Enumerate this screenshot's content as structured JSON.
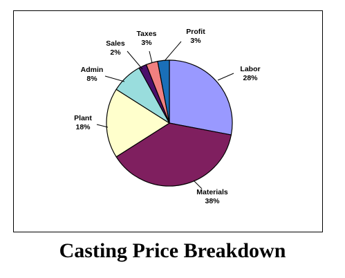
{
  "chart_data": {
    "type": "pie",
    "title": "Casting Price Breakdown",
    "start_angle_deg": 0,
    "direction": "clockwise",
    "legend": "none",
    "slices": [
      {
        "label": "Labor",
        "value": 28,
        "value_label": "28%",
        "color": "#9999ff"
      },
      {
        "label": "Materials",
        "value": 38,
        "value_label": "38%",
        "color": "#7f1f5f"
      },
      {
        "label": "Plant",
        "value": 18,
        "value_label": "18%",
        "color": "#ffffcc"
      },
      {
        "label": "Admin",
        "value": 8,
        "value_label": "8%",
        "color": "#99dddd"
      },
      {
        "label": "Sales",
        "value": 2,
        "value_label": "2%",
        "color": "#4b0f6b"
      },
      {
        "label": "Taxes",
        "value": 3,
        "value_label": "3%",
        "color": "#f08080"
      },
      {
        "label": "Profit",
        "value": 3,
        "value_label": "3%",
        "color": "#1a6fb8"
      }
    ]
  }
}
